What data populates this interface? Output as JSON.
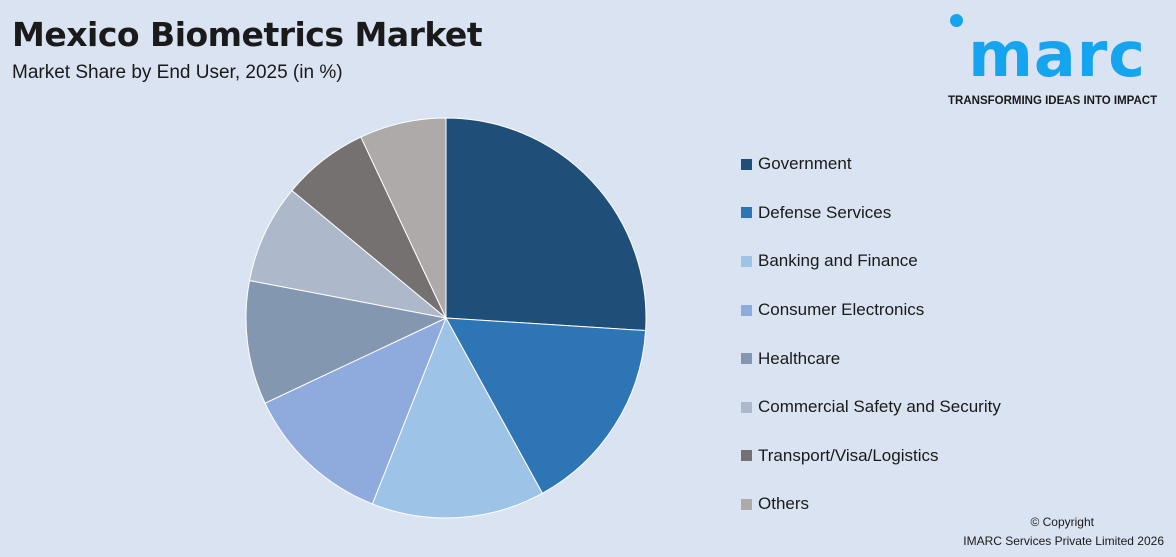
{
  "title": "Mexico Biometrics Market",
  "subtitle": "Market Share by End User, 2025 (in %)",
  "logo": {
    "word": "imarc",
    "tagline": "TRANSFORMING IDEAS INTO IMPACT",
    "color": "#14a4f0"
  },
  "footer": {
    "copyright": "© Copyright",
    "company": "IMARC Services Private Limited 2026"
  },
  "chart_data": {
    "type": "pie",
    "title": "Mexico Biometrics Market",
    "subtitle": "Market Share by End User, 2025 (in %)",
    "legend_placement": "right",
    "start": "top, clockwise",
    "categories": [
      "Government",
      "Defense Services",
      "Banking and Finance",
      "Consumer Electronics",
      "Healthcare",
      "Commercial Safety and Security",
      "Transport/Visa/Logistics",
      "Others"
    ],
    "values": [
      26,
      16,
      14,
      12,
      10,
      8,
      7,
      7
    ],
    "colors": [
      "#1f4e79",
      "#2e75b6",
      "#9dc3e6",
      "#8faadc",
      "#8497b0",
      "#adb9ca",
      "#767171",
      "#aeaaaa"
    ]
  }
}
